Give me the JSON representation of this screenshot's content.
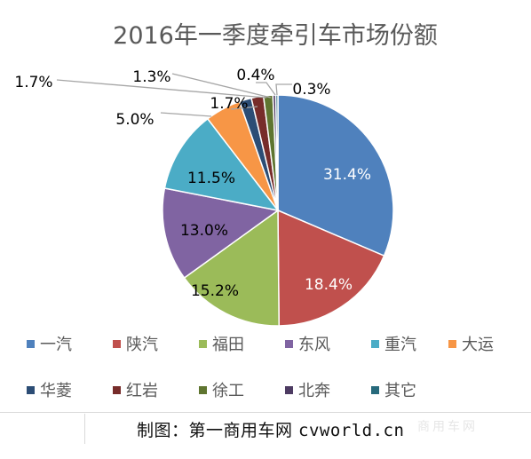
{
  "chart_data": {
    "type": "pie",
    "title": "2016年一季度牵引车市场份额",
    "start_angle_deg": 0,
    "direction": "clockwise",
    "legend_position": "bottom",
    "slices": [
      {
        "label": "一汽",
        "value": 31.4,
        "display": "31.4%",
        "color": "#4f81bd"
      },
      {
        "label": "陕汽",
        "value": 18.4,
        "display": "18.4%",
        "color": "#c0504d"
      },
      {
        "label": "福田",
        "value": 15.2,
        "display": "15.2%",
        "color": "#9bbb59"
      },
      {
        "label": "东风",
        "value": 13.0,
        "display": "13.0%",
        "color": "#8064a2"
      },
      {
        "label": "重汽",
        "value": 11.5,
        "display": "11.5%",
        "color": "#4bacc6"
      },
      {
        "label": "大运",
        "value": 5.0,
        "display": "5.0%",
        "color": "#f79646"
      },
      {
        "label": "华菱",
        "value": 1.7,
        "display": "1.7%",
        "color": "#2c4d75"
      },
      {
        "label": "红岩",
        "value": 1.7,
        "display": "1.7%",
        "color": "#772c2a"
      },
      {
        "label": "徐工",
        "value": 1.3,
        "display": "1.3%",
        "color": "#5f7530"
      },
      {
        "label": "北奔",
        "value": 0.4,
        "display": "0.4%",
        "color": "#4d3b62"
      },
      {
        "label": "其它",
        "value": 0.3,
        "display": "0.3%",
        "color": "#276a7c"
      }
    ]
  },
  "caption": {
    "prefix": "制图：第一商用车网 ",
    "site": "cvworld.cn"
  },
  "watermark": "商用车网"
}
